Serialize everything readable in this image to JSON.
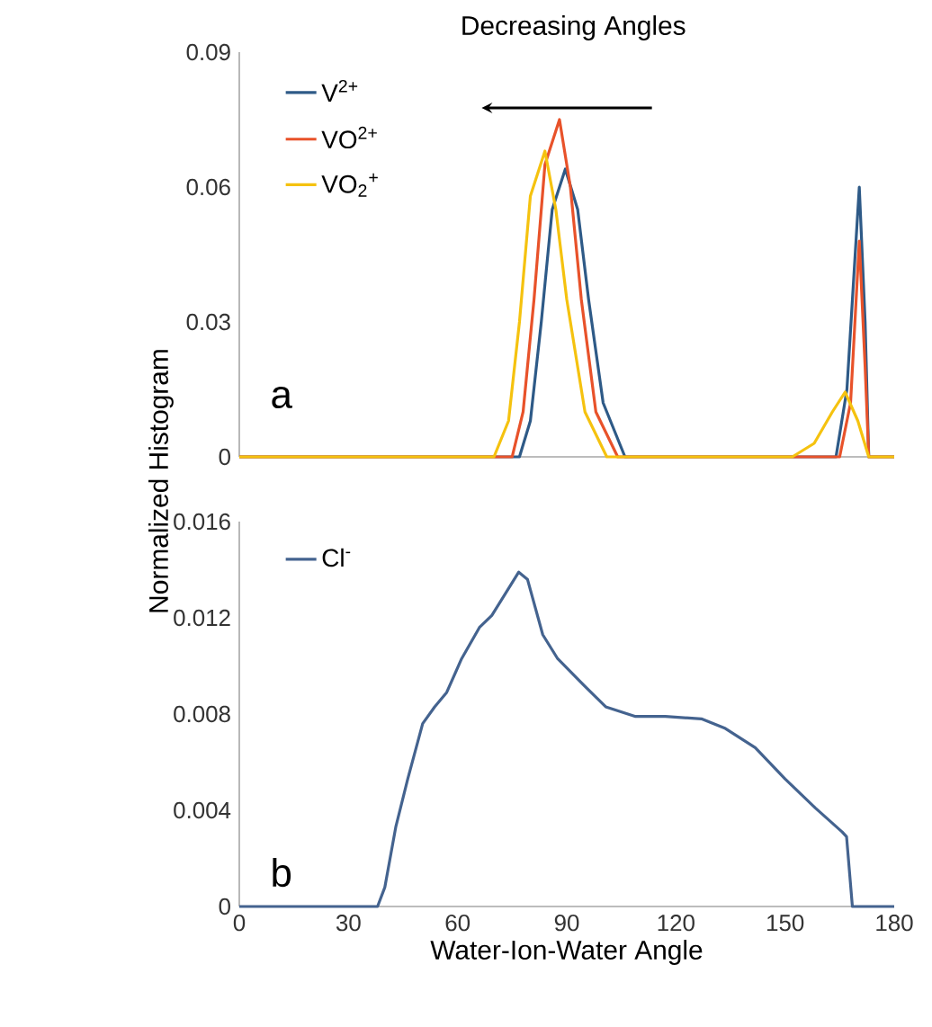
{
  "chart_data": [
    {
      "type": "line",
      "ylabel": "Normalized Histogram",
      "annotations": [
        "Decreasing Angles",
        "a"
      ],
      "xlim": [
        0,
        180
      ],
      "xticks": [
        0,
        30,
        60,
        90,
        120,
        150,
        180
      ],
      "ylim": [
        0,
        0.09
      ],
      "yticks": [
        0,
        0.03,
        0.06,
        0.09
      ],
      "tick_labels": "y",
      "legend": "top left",
      "series": [
        {
          "name": "V$^{2+}$",
          "color": "#2e5a87",
          "x": [
            0,
            77,
            80,
            83,
            86,
            89.6,
            93,
            96,
            100,
            106,
            164,
            167,
            170.4,
            172,
            173,
            180
          ],
          "values": [
            0,
            0,
            0.008,
            0.03,
            0.055,
            0.064,
            0.055,
            0.035,
            0.012,
            0,
            0,
            0.015,
            0.06,
            0.03,
            0,
            0
          ]
        },
        {
          "name": "VO$^{2+}$",
          "color": "#e8522a",
          "x": [
            0,
            75,
            78,
            81,
            84,
            88,
            91,
            94,
            98,
            104,
            165,
            168,
            170.4,
            172,
            173,
            180
          ],
          "values": [
            0,
            0,
            0.01,
            0.035,
            0.065,
            0.075,
            0.06,
            0.035,
            0.01,
            0,
            0,
            0.012,
            0.048,
            0.02,
            0,
            0
          ]
        },
        {
          "name": "VO$_{2}$$^{+}$",
          "color": "#f5c20f",
          "x": [
            0,
            70,
            74,
            77,
            80,
            84,
            87,
            90,
            95,
            101,
            152,
            158,
            163,
            166.5,
            170,
            173,
            180
          ],
          "values": [
            0,
            0,
            0.008,
            0.03,
            0.058,
            0.068,
            0.055,
            0.035,
            0.01,
            0,
            0,
            0.003,
            0.01,
            0.0144,
            0.008,
            0,
            0
          ]
        }
      ]
    },
    {
      "type": "line",
      "xlabel": "Water-Ion-Water Angle",
      "annotations": [
        "b"
      ],
      "xlim": [
        0,
        180
      ],
      "xticks": [
        0,
        30,
        60,
        90,
        120,
        150,
        180
      ],
      "ylim": [
        0,
        0.016
      ],
      "yticks": [
        0,
        0.004,
        0.008,
        0.012,
        0.016
      ],
      "legend": "top left",
      "series": [
        {
          "name": "Cl$^{-}$",
          "color": "#44638f",
          "x": [
            0,
            38,
            40,
            43,
            46.3,
            50.4,
            53.7,
            57,
            61.1,
            66,
            69.4,
            72.7,
            76.8,
            79.2,
            83.4,
            87.5,
            94,
            100.7,
            108.9,
            117.1,
            127,
            133.6,
            141.8,
            150,
            158.3,
            165.7,
            166.9,
            168.5,
            180
          ],
          "values": [
            0,
            0,
            0.0008,
            0.0033,
            0.0053,
            0.0076,
            0.0083,
            0.0089,
            0.0103,
            0.0116,
            0.0121,
            0.0129,
            0.0139,
            0.0136,
            0.0113,
            0.0103,
            0.0093,
            0.0083,
            0.0079,
            0.0079,
            0.0078,
            0.0074,
            0.0066,
            0.0053,
            0.0041,
            0.0031,
            0.0029,
            0,
            0
          ]
        }
      ]
    }
  ]
}
